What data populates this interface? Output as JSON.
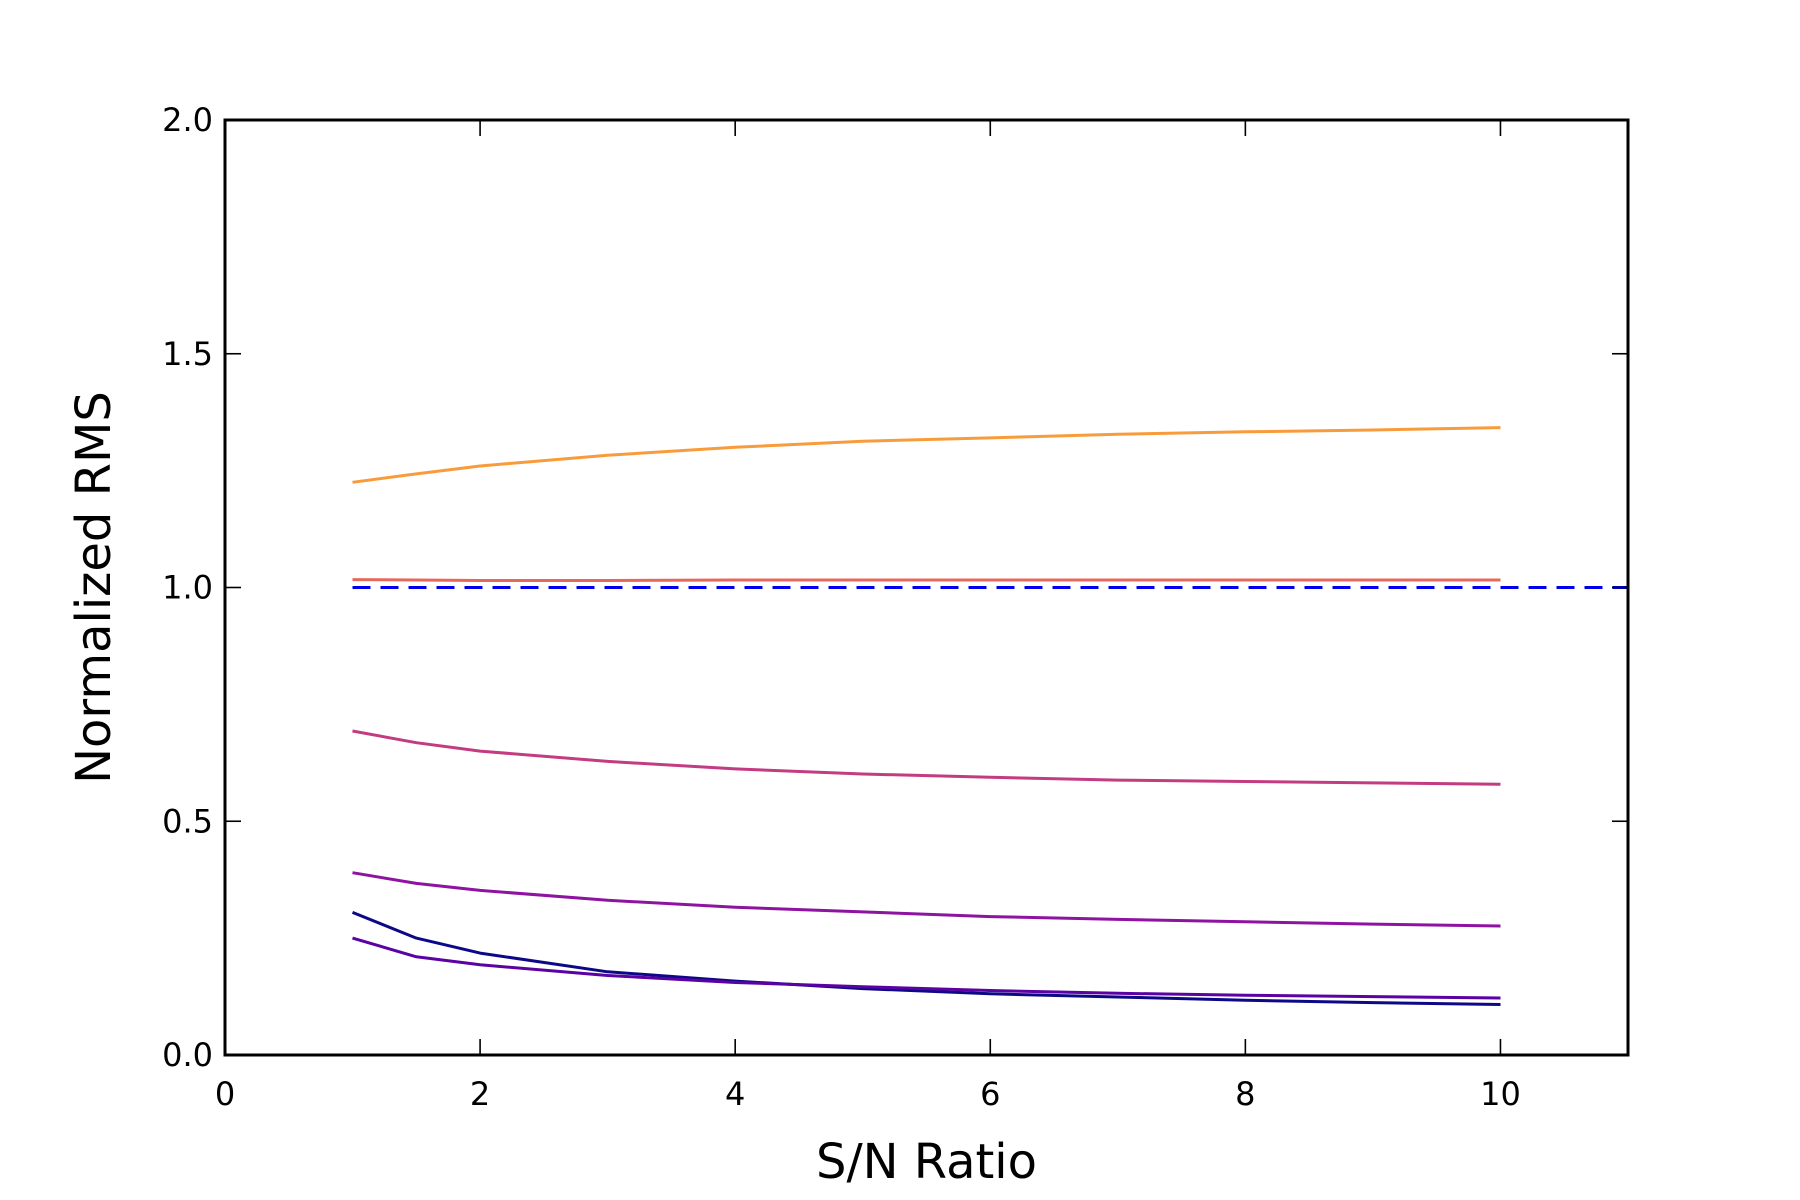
{
  "chart_data": {
    "type": "line",
    "title": "",
    "xlabel": "S/N Ratio",
    "ylabel": "Normalized RMS",
    "xlim": [
      0,
      11
    ],
    "ylim": [
      0.0,
      2.0
    ],
    "xticks": [
      0,
      2,
      4,
      6,
      8,
      10
    ],
    "xtick_labels": [
      "0",
      "2",
      "4",
      "6",
      "8",
      "10"
    ],
    "yticks": [
      0.0,
      0.5,
      1.0,
      1.5,
      2.0
    ],
    "ytick_labels": [
      "0.0",
      "0.5",
      "1.0",
      "1.5",
      "2.0"
    ],
    "grid": false,
    "legend": "none",
    "series": [
      {
        "color": "#f89c3b",
        "style": "solid",
        "x": [
          1,
          1.5,
          2,
          3,
          4,
          5,
          6,
          7,
          8,
          9,
          10
        ],
        "y": [
          1.225,
          1.243,
          1.26,
          1.283,
          1.3,
          1.313,
          1.32,
          1.328,
          1.333,
          1.337,
          1.342
        ]
      },
      {
        "color": "#e5685c",
        "style": "solid",
        "x": [
          1,
          1.5,
          2,
          3,
          4,
          5,
          6,
          7,
          8,
          9,
          10
        ],
        "y": [
          1.017,
          1.016,
          1.015,
          1.015,
          1.016,
          1.016,
          1.016,
          1.016,
          1.016,
          1.016,
          1.016
        ]
      },
      {
        "color": "#0000ee",
        "style": "dashed",
        "x": [
          1,
          11
        ],
        "y": [
          1.0,
          1.0
        ]
      },
      {
        "color": "#c33b80",
        "style": "solid",
        "x": [
          1,
          1.5,
          2,
          3,
          4,
          5,
          6,
          7,
          8,
          9,
          10
        ],
        "y": [
          0.693,
          0.668,
          0.65,
          0.628,
          0.612,
          0.601,
          0.594,
          0.588,
          0.585,
          0.582,
          0.579
        ]
      },
      {
        "color": "#8e13a1",
        "style": "solid",
        "x": [
          1,
          1.5,
          2,
          3,
          4,
          5,
          6,
          7,
          8,
          9,
          10
        ],
        "y": [
          0.39,
          0.367,
          0.352,
          0.331,
          0.316,
          0.306,
          0.296,
          0.29,
          0.285,
          0.28,
          0.276
        ]
      },
      {
        "color": "#0d0887",
        "style": "solid",
        "x": [
          1,
          1.5,
          2,
          3,
          4,
          5,
          6,
          7,
          8,
          9,
          10
        ],
        "y": [
          0.305,
          0.25,
          0.218,
          0.178,
          0.158,
          0.142,
          0.131,
          0.124,
          0.117,
          0.112,
          0.108
        ]
      },
      {
        "color": "#5b02a3",
        "style": "solid",
        "x": [
          1,
          1.5,
          2,
          3,
          4,
          5,
          6,
          7,
          8,
          9,
          10
        ],
        "y": [
          0.25,
          0.21,
          0.193,
          0.17,
          0.155,
          0.146,
          0.138,
          0.132,
          0.128,
          0.125,
          0.122
        ]
      }
    ]
  }
}
